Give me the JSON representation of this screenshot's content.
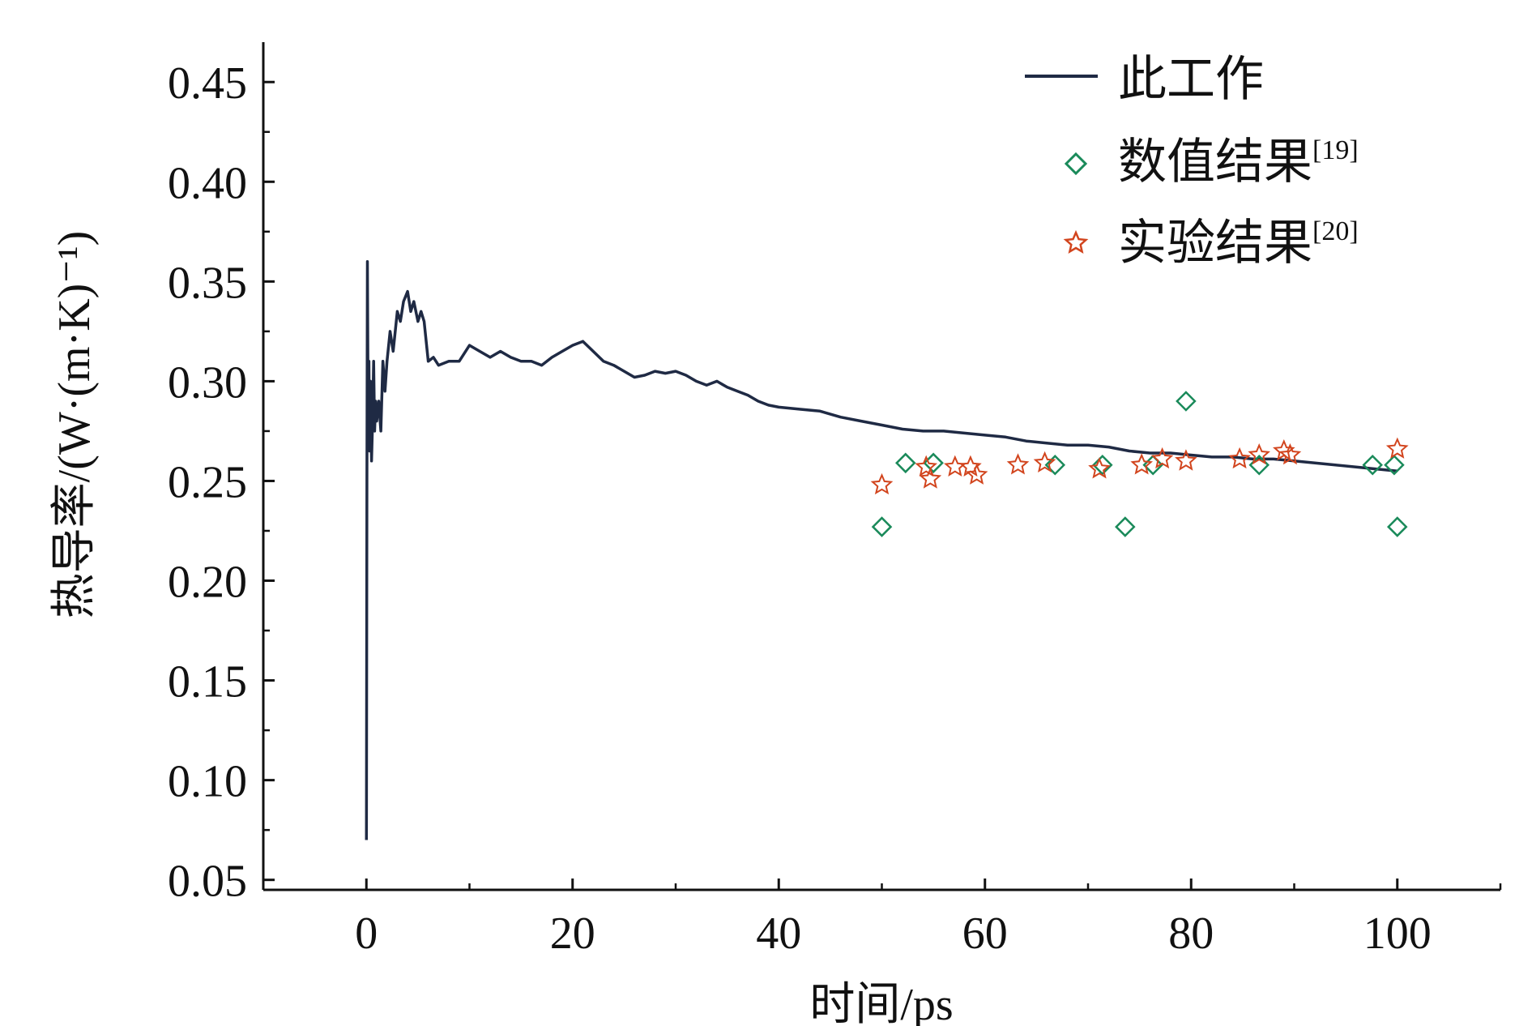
{
  "chart_data": {
    "type": "line",
    "xlabel": "时间/ps",
    "ylabel": "热导率/(W·(m·K)⁻¹)",
    "xlim": [
      -10,
      110
    ],
    "ylim": [
      0.045,
      0.47
    ],
    "x_ticks": [
      0,
      20,
      40,
      60,
      80,
      100
    ],
    "y_ticks": [
      0.05,
      0.1,
      0.15,
      0.2,
      0.25,
      0.3,
      0.35,
      0.4,
      0.45
    ],
    "x_tick_labels": [
      "0",
      "20",
      "40",
      "60",
      "80",
      "100"
    ],
    "y_tick_labels": [
      "0.05",
      "0.10",
      "0.15",
      "0.20",
      "0.25",
      "0.30",
      "0.35",
      "0.40",
      "0.45"
    ],
    "grid": false,
    "legend_position": "top-right",
    "series": [
      {
        "name": "此工作",
        "kind": "line",
        "color": "#1f2a44",
        "x": [
          0,
          0.05,
          0.1,
          0.15,
          0.2,
          0.25,
          0.3,
          0.4,
          0.5,
          0.6,
          0.7,
          0.8,
          0.9,
          1.0,
          1.2,
          1.4,
          1.6,
          1.8,
          2.0,
          2.3,
          2.6,
          3.0,
          3.3,
          3.6,
          4.0,
          4.3,
          4.6,
          5.0,
          5.3,
          5.6,
          6.0,
          6.5,
          7.0,
          8.0,
          9.0,
          10.0,
          11.0,
          12.0,
          13.0,
          14.0,
          15.0,
          16.0,
          17.0,
          18.0,
          19.0,
          20.0,
          21.0,
          22.0,
          23.0,
          24.0,
          25.0,
          26.0,
          27.0,
          28.0,
          29.0,
          30.0,
          31.0,
          32.0,
          33.0,
          34.0,
          35.0,
          36.0,
          37.0,
          38.0,
          39.0,
          40.0,
          42.0,
          44.0,
          46.0,
          48.0,
          50.0,
          52.0,
          54.0,
          56.0,
          58.0,
          60.0,
          62.0,
          64.0,
          66.0,
          68.0,
          70.0,
          72.0,
          74.0,
          76.0,
          78.0,
          80.0,
          82.0,
          84.0,
          86.0,
          88.0,
          90.0,
          92.0,
          94.0,
          96.0,
          98.0,
          100.0
        ],
        "y": [
          0.07,
          0.25,
          0.36,
          0.3,
          0.27,
          0.31,
          0.265,
          0.3,
          0.26,
          0.28,
          0.31,
          0.275,
          0.29,
          0.28,
          0.29,
          0.275,
          0.31,
          0.295,
          0.31,
          0.325,
          0.315,
          0.335,
          0.33,
          0.34,
          0.345,
          0.335,
          0.34,
          0.33,
          0.335,
          0.33,
          0.31,
          0.312,
          0.308,
          0.31,
          0.31,
          0.318,
          0.315,
          0.312,
          0.315,
          0.312,
          0.31,
          0.31,
          0.308,
          0.312,
          0.315,
          0.318,
          0.32,
          0.315,
          0.31,
          0.308,
          0.305,
          0.302,
          0.303,
          0.305,
          0.304,
          0.305,
          0.303,
          0.3,
          0.298,
          0.3,
          0.297,
          0.295,
          0.293,
          0.29,
          0.288,
          0.287,
          0.286,
          0.285,
          0.282,
          0.28,
          0.278,
          0.276,
          0.275,
          0.275,
          0.274,
          0.273,
          0.272,
          0.27,
          0.269,
          0.268,
          0.268,
          0.267,
          0.265,
          0.264,
          0.264,
          0.263,
          0.262,
          0.262,
          0.261,
          0.261,
          0.26,
          0.259,
          0.258,
          0.257,
          0.256,
          0.255
        ]
      },
      {
        "name": "数值结果",
        "name_ref": "[19]",
        "kind": "scatter",
        "marker": "diamond",
        "color": "#1a8a5a",
        "x": [
          50.0,
          52.3,
          55.0,
          66.8,
          71.4,
          73.6,
          76.3,
          79.5,
          86.6,
          97.6,
          99.7,
          100.0
        ],
        "y": [
          0.227,
          0.259,
          0.259,
          0.258,
          0.258,
          0.227,
          0.258,
          0.29,
          0.258,
          0.258,
          0.258,
          0.227
        ]
      },
      {
        "name": "实验结果",
        "name_ref": "[20]",
        "kind": "scatter",
        "marker": "star",
        "color": "#d2451e",
        "x": [
          50.0,
          54.3,
          54.7,
          57.1,
          58.6,
          59.2,
          63.2,
          65.8,
          71.1,
          75.2,
          77.2,
          79.5,
          84.7,
          86.6,
          89.0,
          89.6,
          100.0
        ],
        "y": [
          0.248,
          0.257,
          0.251,
          0.257,
          0.257,
          0.253,
          0.258,
          0.259,
          0.256,
          0.258,
          0.261,
          0.26,
          0.261,
          0.263,
          0.265,
          0.263,
          0.266
        ]
      }
    ]
  }
}
